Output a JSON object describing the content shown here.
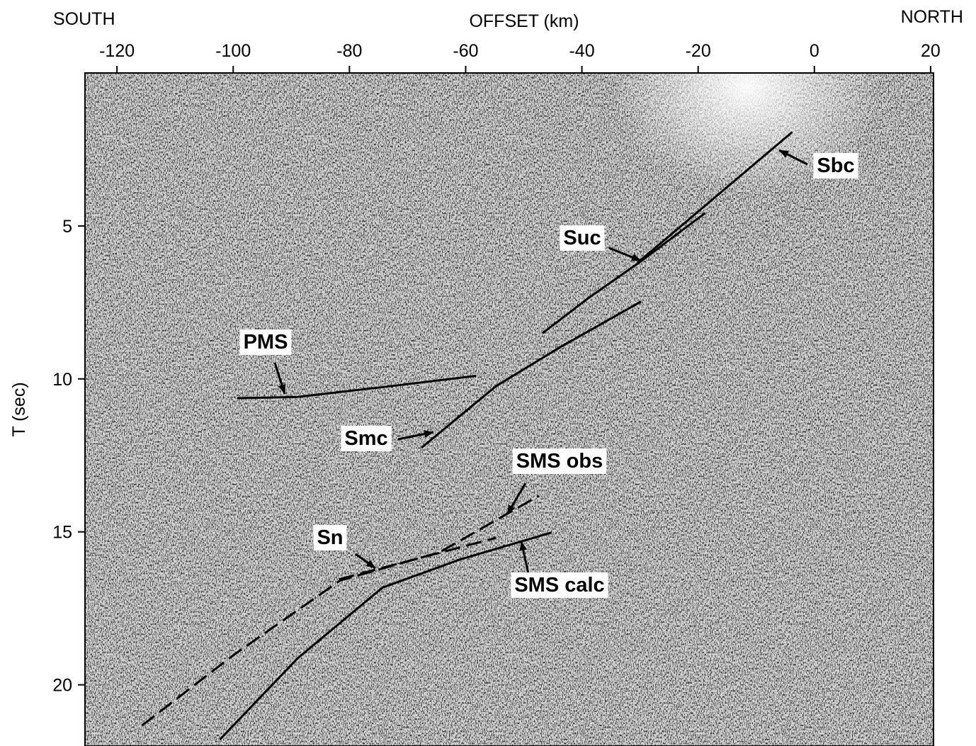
{
  "chart_data": {
    "type": "line",
    "title": "OFFSET (km)",
    "left_label": "SOUTH",
    "right_label": "NORTH",
    "ylabel": "T (sec)",
    "xlim": [
      -125.5,
      20.5
    ],
    "ylim": [
      0,
      22
    ],
    "y_inverted": true,
    "xticks": [
      -120,
      -100,
      -80,
      -60,
      -40,
      -20,
      0,
      20
    ],
    "yticks": [
      5,
      10,
      15,
      20
    ],
    "series": [
      {
        "name": "Sbc",
        "color": "#000000",
        "style": "solid",
        "x": [
          -30.4,
          -3.8
        ],
        "values": [
          6.2,
          1.93
        ]
      },
      {
        "name": "Suc",
        "color": "#000000",
        "style": "solid",
        "x": [
          -46.8,
          -38.9,
          -29.8,
          -18.8
        ],
        "values": [
          8.51,
          7.36,
          6.15,
          4.58
        ]
      },
      {
        "name": "PMS",
        "color": "#000000",
        "style": "solid",
        "x": [
          -99.3,
          -88.9,
          -73,
          -58.2
        ],
        "values": [
          10.63,
          10.59,
          10.24,
          9.9
        ]
      },
      {
        "name": "Smc",
        "color": "#000000",
        "style": "solid",
        "x": [
          -67.6,
          -54.8,
          -43.8,
          -29.8
        ],
        "values": [
          12.25,
          10.24,
          8.97,
          7.47
        ]
      },
      {
        "name": "SMS obs",
        "color": "#000000",
        "style": "dashed",
        "x": [
          -115.7,
          -99.9,
          -81.6,
          -64.5,
          -47.4
        ],
        "values": [
          21.33,
          19.02,
          16.59,
          15.67,
          13.82
        ]
      },
      {
        "name": "Sn",
        "color": "#000000",
        "style": "dashed",
        "x": [
          -81.8,
          -54.8
        ],
        "values": [
          16.55,
          15.2
        ]
      },
      {
        "name": "SMS calc",
        "color": "#000000",
        "style": "solid",
        "x": [
          -102.3,
          -88.9,
          -74.3,
          -60.9,
          -45.2
        ],
        "values": [
          21.79,
          19.13,
          16.82,
          15.9,
          15.02
        ]
      }
    ]
  }
}
